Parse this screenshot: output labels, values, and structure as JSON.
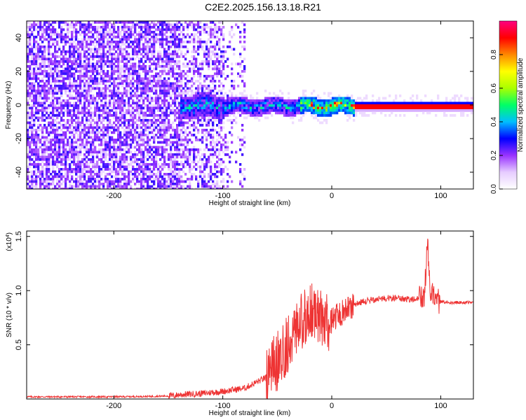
{
  "page": {
    "title": "C2E2.2025.156.13.18.R21"
  },
  "chart_data": [
    {
      "type": "heatmap",
      "title": "C2E2.2025.156.13.18.R21",
      "xlabel": "Height of straight line (km)",
      "ylabel": "Frequency (Hz)",
      "xlim": [
        -280,
        130
      ],
      "ylim": [
        -50,
        50
      ],
      "x_ticks": [
        -200,
        -100,
        0,
        100
      ],
      "x_tick_labels": [
        "-200",
        "-100",
        "0",
        "100"
      ],
      "y_ticks": [
        -40,
        -20,
        0,
        20,
        40
      ],
      "y_tick_labels": [
        "-40",
        "-20",
        "0",
        "20",
        "40"
      ],
      "colorbar": {
        "label": "Normalized spectral amplitude",
        "range": [
          0,
          1
        ],
        "ticks": [
          0.0,
          0.2,
          0.4,
          0.6,
          0.8
        ],
        "tick_labels": [
          "0.0",
          "0.2",
          "0.4",
          "0.6",
          "0.8"
        ],
        "colormap": [
          "#ffffff",
          "#e6ccff",
          "#9933ff",
          "#0000ff",
          "#00bfff",
          "#00ff66",
          "#aaff00",
          "#ffff00",
          "#ff8800",
          "#ff0000",
          "#ff0080"
        ]
      },
      "description_points": {
        "noise_region_x": [
          -280,
          -80
        ],
        "signal_band_x": [
          -140,
          130
        ],
        "signal_center_freq": 0
      }
    },
    {
      "type": "line",
      "xlabel": "Height of straight line (km)",
      "ylabel": "SNR (10 * v/v)",
      "y_multiplier": "(x10^4)",
      "xlim": [
        -280,
        130
      ],
      "ylim": [
        0,
        1.55
      ],
      "x_ticks": [
        -200,
        -100,
        0,
        100
      ],
      "x_tick_labels": [
        "-200",
        "-100",
        "0",
        "100"
      ],
      "y_ticks": [
        0.5,
        1.0,
        1.5
      ],
      "y_tick_labels": [
        "0.5",
        "1.0",
        "1.5"
      ],
      "color": "#ee3333",
      "series": [
        {
          "x": [
            -280,
            -240,
            -200,
            -160,
            -145,
            -140,
            -120,
            -110,
            -100,
            -80,
            -70,
            -60,
            -55,
            -50,
            -45,
            -40,
            -35,
            -30,
            -25,
            -20,
            -15,
            -10,
            -5,
            0,
            5,
            10,
            15,
            20,
            30,
            40,
            50,
            60,
            70,
            80,
            85,
            88,
            90,
            95,
            100,
            110,
            120,
            130
          ],
          "y": [
            0.02,
            0.02,
            0.02,
            0.025,
            0.03,
            0.04,
            0.05,
            0.06,
            0.07,
            0.1,
            0.15,
            0.2,
            0.3,
            0.35,
            0.45,
            0.5,
            0.6,
            0.7,
            0.75,
            0.8,
            0.8,
            0.75,
            0.7,
            0.72,
            0.78,
            0.8,
            0.84,
            0.87,
            0.9,
            0.92,
            0.93,
            0.93,
            0.92,
            0.92,
            0.95,
            1.45,
            1.0,
            0.9,
            0.9,
            0.89,
            0.89,
            0.89
          ]
        }
      ]
    }
  ]
}
